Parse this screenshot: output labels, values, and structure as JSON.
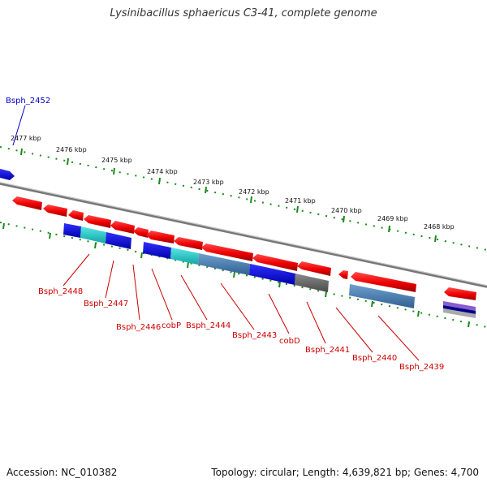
{
  "title": "Lysinibacillus sphaericus C3-41, complete genome",
  "footer": {
    "accession": "Accession: NC_010382",
    "stats": "Topology: circular; Length: 4,639,821 bp; Genes: 4,700"
  },
  "scale": {
    "kbp_labels": [
      "2477 kbp",
      "2476 kbp",
      "2475 kbp",
      "2474 kbp",
      "2473 kbp",
      "2472 kbp",
      "2471 kbp",
      "2470 kbp",
      "2469 kbp",
      "2468 kbp"
    ]
  },
  "genes": {
    "upper": [
      {
        "name": "Bsph_2452"
      }
    ],
    "lower": [
      {
        "name": "Bsph_2448"
      },
      {
        "name": "Bsph_2447"
      },
      {
        "name": "Bsph_2446"
      },
      {
        "name": "cobP"
      },
      {
        "name": "Bsph_2444"
      },
      {
        "name": "Bsph_2443"
      },
      {
        "name": "cobD"
      },
      {
        "name": "Bsph_2441"
      },
      {
        "name": "Bsph_2440"
      },
      {
        "name": "Bsph_2439"
      }
    ]
  },
  "colors": {
    "gene_label": "#cc0000",
    "upper_label": "#0000cc",
    "cds": "#ff0000",
    "cog_blue": "#0000ee",
    "cog_cyan": "#22d0d0",
    "cog_steel": "#4a82b6",
    "cog_gray": "#707070",
    "backbone": "#888888",
    "tick": "#1a8a1a"
  }
}
